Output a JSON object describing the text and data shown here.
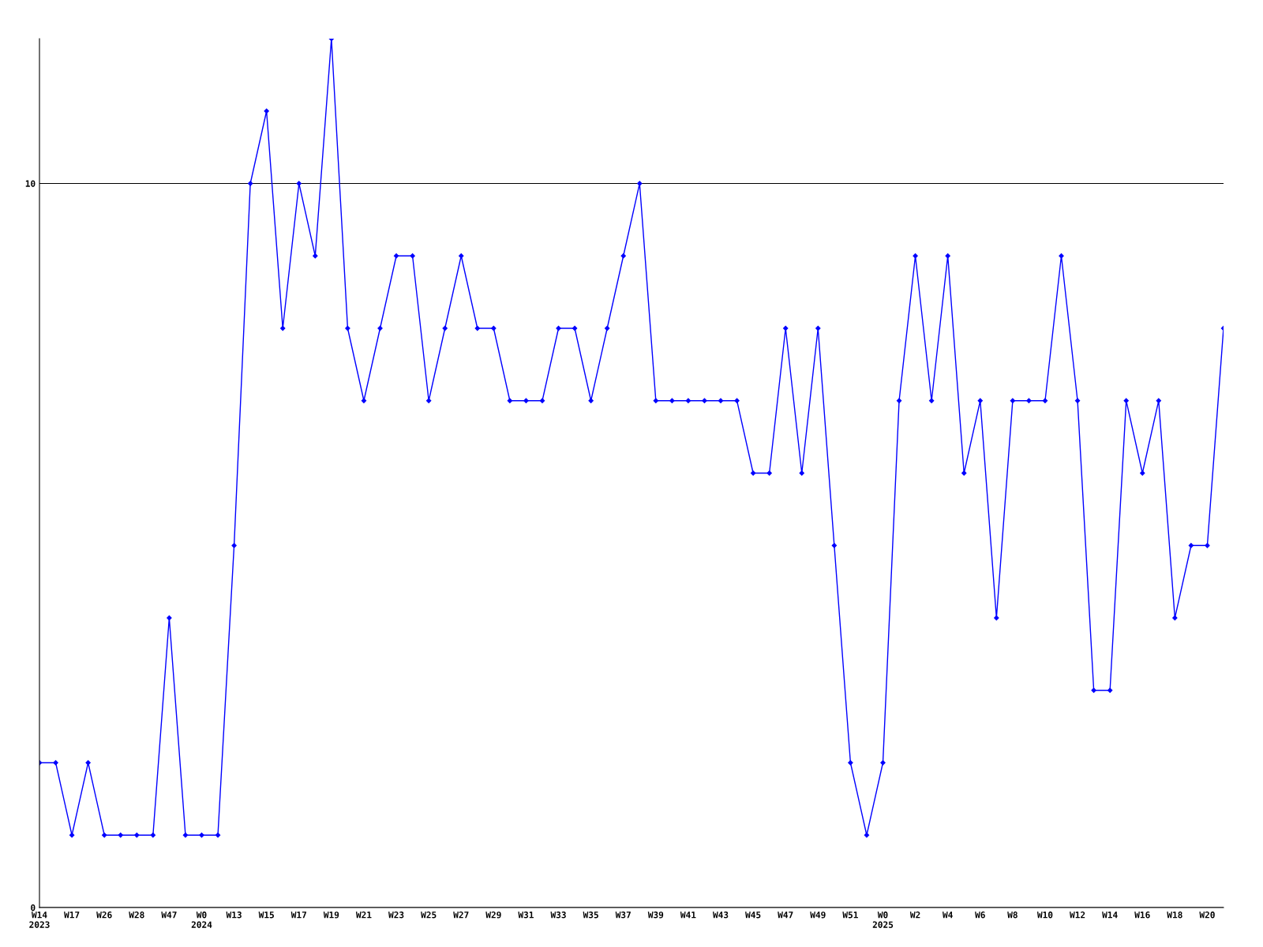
{
  "chart_data": {
    "type": "line",
    "categories": [
      "W14\n2023",
      null,
      "W17",
      null,
      "W26",
      null,
      "W28",
      null,
      "W47",
      null,
      "W0\n2024",
      null,
      "W13",
      null,
      "W15",
      null,
      "W17",
      null,
      "W19",
      null,
      "W21",
      null,
      "W23",
      null,
      "W25",
      null,
      "W27",
      null,
      "W29",
      null,
      "W31",
      null,
      "W33",
      null,
      "W35",
      null,
      "W37",
      null,
      "W39",
      null,
      "W41",
      null,
      "W43",
      null,
      "W45",
      null,
      "W47",
      null,
      "W49",
      null,
      "W51",
      null,
      "W0\n2025",
      null,
      "W2",
      null,
      "W4",
      null,
      "W6",
      null,
      "W8",
      null,
      "W10",
      null,
      "W12",
      null,
      "W14",
      null,
      "W16",
      null,
      "W18",
      null,
      "W20",
      null
    ],
    "series": [
      {
        "color": "#0000ff",
        "values": [
          2,
          2,
          1,
          2,
          1,
          1,
          1,
          1,
          4,
          1,
          1,
          1,
          5,
          10,
          11,
          8,
          10,
          9,
          12,
          8,
          7,
          8,
          9,
          9,
          7,
          8,
          9,
          8,
          8,
          7,
          7,
          7,
          8,
          8,
          7,
          8,
          9,
          10,
          7,
          7,
          7,
          7,
          7,
          7,
          6,
          6,
          8,
          6,
          8,
          5,
          2,
          1,
          2,
          7,
          9,
          7,
          9,
          6,
          7,
          4,
          7,
          7,
          7,
          9,
          7,
          3,
          3,
          7,
          6,
          7,
          4,
          5,
          5,
          8
        ]
      }
    ],
    "ylim": [
      0,
      12
    ],
    "yticks": [
      0,
      10
    ],
    "grid": "y",
    "marker": "diamond",
    "line_style": "solid"
  }
}
